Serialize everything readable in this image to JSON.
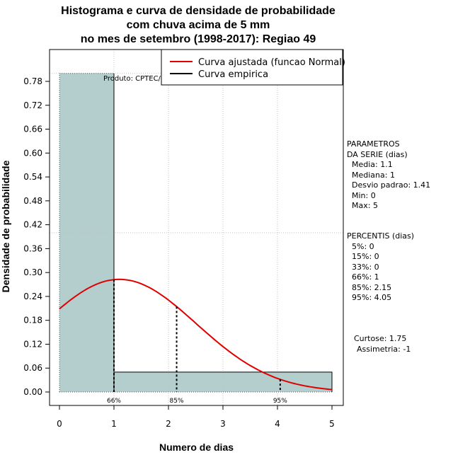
{
  "chart_data": {
    "type": "histogram",
    "title": [
      "Histograma e curva de densidade de probabilidade",
      "com chuva acima de 5 mm",
      "no mes de setembro (1998-2017): Regiao 49"
    ],
    "xlabel": "Numero de dias",
    "ylabel": "Densidade de probabilidade",
    "xlim": [
      0,
      5
    ],
    "ylim": [
      0,
      0.8
    ],
    "xticks": [
      "0",
      "1",
      "2",
      "3",
      "4",
      "5"
    ],
    "yticks": [
      "0.00",
      "0.06",
      "0.12",
      "0.18",
      "0.24",
      "0.30",
      "0.36",
      "0.42",
      "0.48",
      "0.54",
      "0.60",
      "0.66",
      "0.72",
      "0.78"
    ],
    "bars": [
      {
        "x0": 0,
        "x1": 1,
        "density": 0.8
      },
      {
        "x0": 1,
        "x1": 5,
        "density": 0.05
      }
    ],
    "normal_curve": {
      "mean": 1.1,
      "sd": 1.41
    },
    "percentile_lines": [
      {
        "label": "66%",
        "x": 1
      },
      {
        "label": "85%",
        "x": 2.15
      },
      {
        "label": "95%",
        "x": 4.05
      }
    ],
    "legend": {
      "position": "top-right",
      "entries": [
        {
          "label": "Curva ajustada (funcao Normal)",
          "color": "#e00000"
        },
        {
          "label": "Curva empirica",
          "color": "#000000"
        }
      ]
    },
    "annotation": "Produto: CPTEC/INPE",
    "colors": {
      "bar_fill": "#b4cece",
      "curve": "#e00000",
      "grid": "#c0c0c0"
    }
  },
  "side_panel": {
    "params_title": [
      "PARAMETROS",
      "DA SERIE (dias)"
    ],
    "params": [
      "Media: 1.1",
      "Mediana: 1",
      "Desvio padrao: 1.41",
      "Min: 0",
      "Max: 5"
    ],
    "percentis_title": "PERCENTIS (dias)",
    "percentis": [
      "5%: 0",
      "15%: 0",
      "33%: 0",
      "66%: 1",
      "85%: 2.15",
      "95%: 4.05"
    ],
    "stats": [
      "Curtose: 1.75",
      "Assimetria: -1"
    ]
  }
}
